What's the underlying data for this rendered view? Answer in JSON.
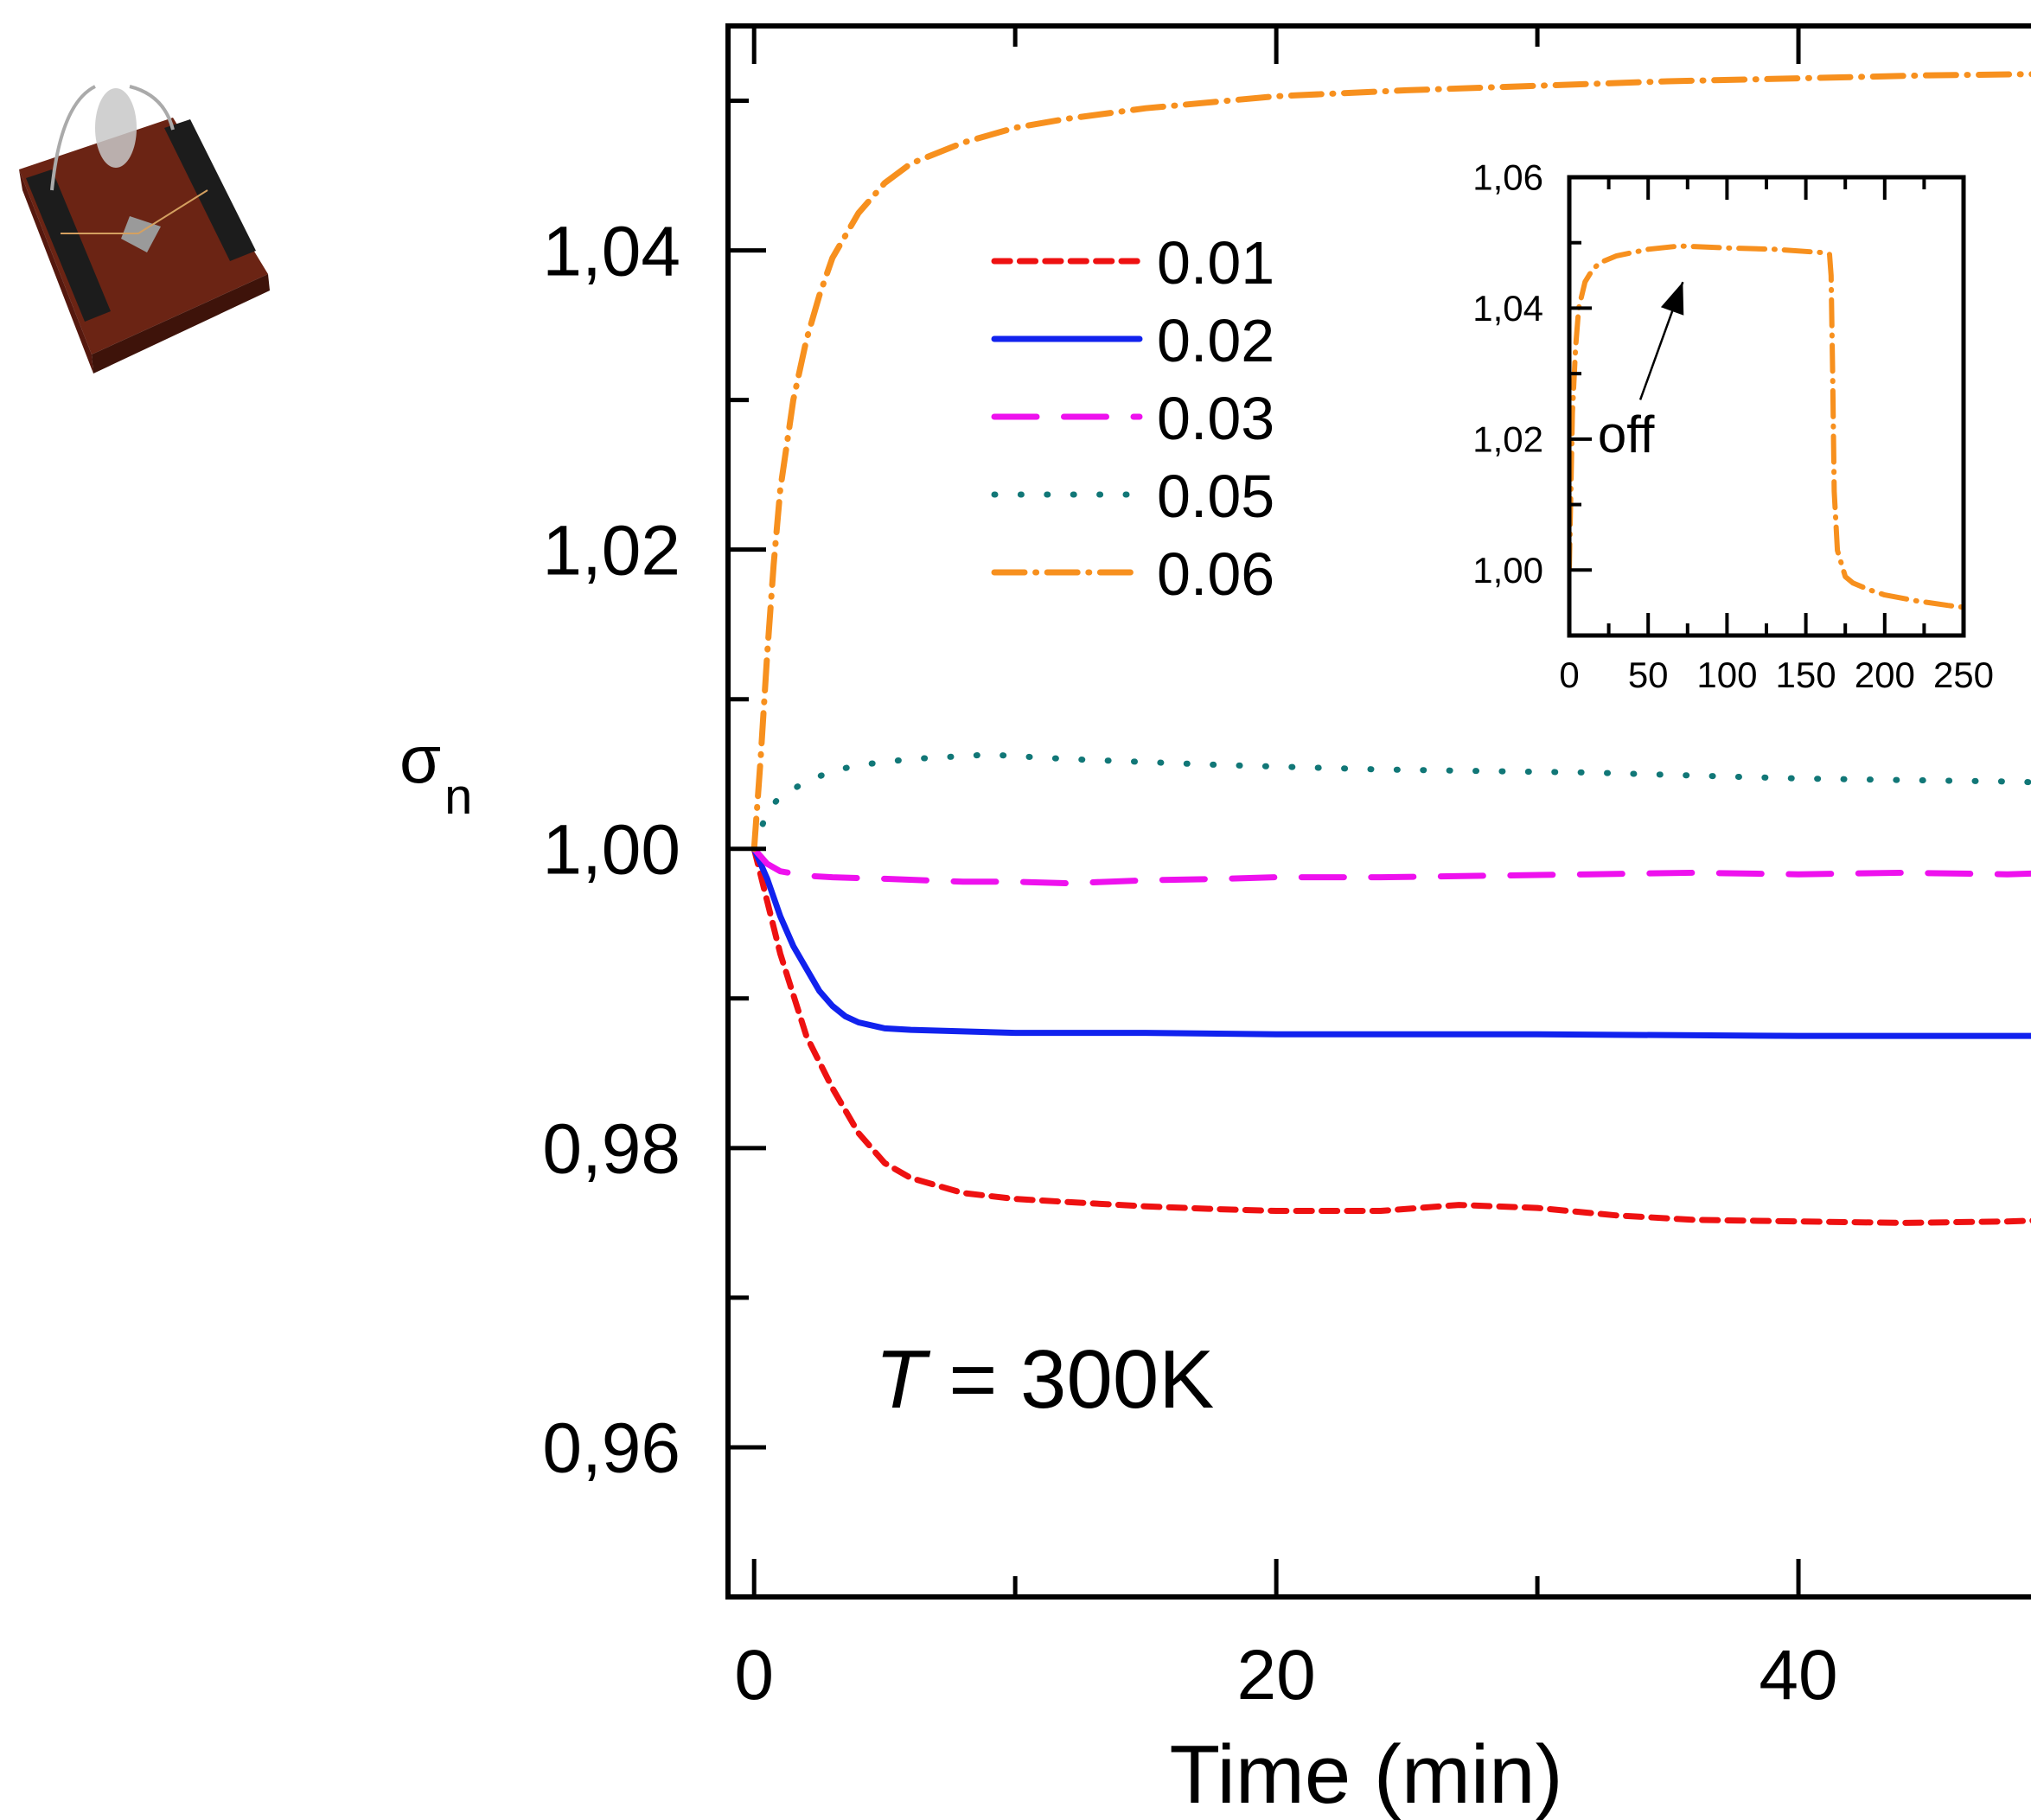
{
  "chart_data": [
    {
      "type": "line",
      "title": "",
      "xlabel": "Time (min)",
      "ylabel_main": "σ",
      "ylabel_sub": "n",
      "xlim": [
        -1,
        50
      ],
      "ylim": [
        0.95,
        1.055
      ],
      "xticks": [
        0,
        20,
        40
      ],
      "xtick_labels": [
        "0",
        "20",
        "40"
      ],
      "yticks": [
        0.96,
        0.98,
        1.0,
        1.02,
        1.04
      ],
      "ytick_labels": [
        "0,96",
        "0,98",
        "1,00",
        "1,02",
        "1,04"
      ],
      "grid": false,
      "legend_position": "top-center",
      "annotation": {
        "italic": "T",
        "text": " = 300K"
      },
      "series": [
        {
          "name": "0.01",
          "color": "#ee1111",
          "dash": "dashed",
          "x": [
            0,
            0.5,
            1,
            2,
            3,
            4,
            5,
            6,
            8,
            10,
            12,
            15,
            18,
            20,
            24,
            27,
            30,
            33,
            36,
            40,
            44,
            48,
            50
          ],
          "y": [
            1.0,
            0.9965,
            0.993,
            0.9875,
            0.984,
            0.981,
            0.979,
            0.978,
            0.977,
            0.9766,
            0.9764,
            0.9761,
            0.9759,
            0.9758,
            0.9758,
            0.9762,
            0.976,
            0.9755,
            0.9752,
            0.9751,
            0.975,
            0.9751,
            0.9752
          ]
        },
        {
          "name": "0.02",
          "color": "#1122ee",
          "dash": "solid",
          "x": [
            0,
            0.5,
            1,
            1.5,
            2,
            2.5,
            3,
            3.5,
            4,
            5,
            6,
            8,
            10,
            15,
            20,
            30,
            40,
            50
          ],
          "y": [
            1.0,
            0.998,
            0.9955,
            0.9935,
            0.992,
            0.9905,
            0.9895,
            0.9888,
            0.9884,
            0.988,
            0.9879,
            0.9878,
            0.9877,
            0.9877,
            0.9876,
            0.9876,
            0.9875,
            0.9875
          ]
        },
        {
          "name": "0.03",
          "color": "#ee11ee",
          "dash": "longdash",
          "x": [
            0,
            0.5,
            1,
            2,
            3,
            5,
            8,
            10,
            12,
            15,
            18,
            20,
            24,
            28,
            32,
            36,
            40,
            44,
            48,
            50
          ],
          "y": [
            1.0,
            0.999,
            0.9985,
            0.9982,
            0.9981,
            0.998,
            0.9978,
            0.9978,
            0.9977,
            0.9979,
            0.998,
            0.9981,
            0.9981,
            0.9982,
            0.9983,
            0.9984,
            0.9983,
            0.9984,
            0.9983,
            0.9984
          ]
        },
        {
          "name": "0.05",
          "color": "#117777",
          "dash": "dotted",
          "x": [
            0,
            0.5,
            1,
            2,
            3,
            4,
            6,
            8,
            9,
            10,
            12,
            15,
            18,
            20,
            24,
            28,
            32,
            36,
            40,
            44,
            48,
            50
          ],
          "y": [
            1.0,
            1.0025,
            1.0035,
            1.0045,
            1.0052,
            1.0056,
            1.006,
            1.0062,
            1.0063,
            1.0062,
            1.006,
            1.0058,
            1.0056,
            1.0055,
            1.0053,
            1.0052,
            1.0051,
            1.0049,
            1.0047,
            1.0046,
            1.0045,
            1.0044
          ]
        },
        {
          "name": "0.06",
          "color": "#f7901e",
          "dash": "dashdot",
          "x": [
            0,
            0.25,
            0.5,
            0.75,
            1,
            1.5,
            2,
            2.5,
            3,
            4,
            5,
            6,
            8,
            10,
            12,
            15,
            20,
            25,
            30,
            35,
            40,
            45,
            50
          ],
          "y": [
            1.0,
            1.006,
            1.013,
            1.019,
            1.024,
            1.03,
            1.034,
            1.037,
            1.0395,
            1.0425,
            1.0445,
            1.0458,
            1.0472,
            1.0482,
            1.0488,
            1.0495,
            1.0503,
            1.0507,
            1.051,
            1.0513,
            1.0515,
            1.0517,
            1.0518
          ]
        }
      ]
    },
    {
      "type": "line",
      "title": "",
      "xlim": [
        0,
        250
      ],
      "ylim": [
        0.99,
        1.06
      ],
      "xticks": [
        0,
        50,
        100,
        150,
        200,
        250
      ],
      "xtick_labels": [
        "0",
        "50",
        "100",
        "150",
        "200",
        "250"
      ],
      "yticks": [
        1.0,
        1.02,
        1.04,
        1.06
      ],
      "ytick_labels": [
        "1,00",
        "1,02",
        "1,04",
        "1,06"
      ],
      "grid": false,
      "annotation": {
        "text": "off",
        "arrow_from": [
          45,
          1.026
        ],
        "arrow_to": [
          72,
          1.044
        ]
      },
      "series": [
        {
          "name": "0.06",
          "color": "#f7901e",
          "dash": "dashdot",
          "x": [
            0,
            1,
            2,
            4,
            6,
            10,
            15,
            20,
            30,
            50,
            70,
            100,
            130,
            160,
            165,
            166,
            167,
            168,
            170,
            175,
            180,
            190,
            200,
            220,
            240,
            250
          ],
          "y": [
            1.0,
            1.012,
            1.024,
            1.034,
            1.04,
            1.044,
            1.046,
            1.047,
            1.048,
            1.049,
            1.0495,
            1.0492,
            1.049,
            1.0485,
            1.0482,
            1.045,
            1.03,
            1.012,
            1.003,
            0.999,
            0.998,
            0.997,
            0.9962,
            0.9953,
            0.9946,
            0.9943
          ]
        }
      ]
    }
  ]
}
